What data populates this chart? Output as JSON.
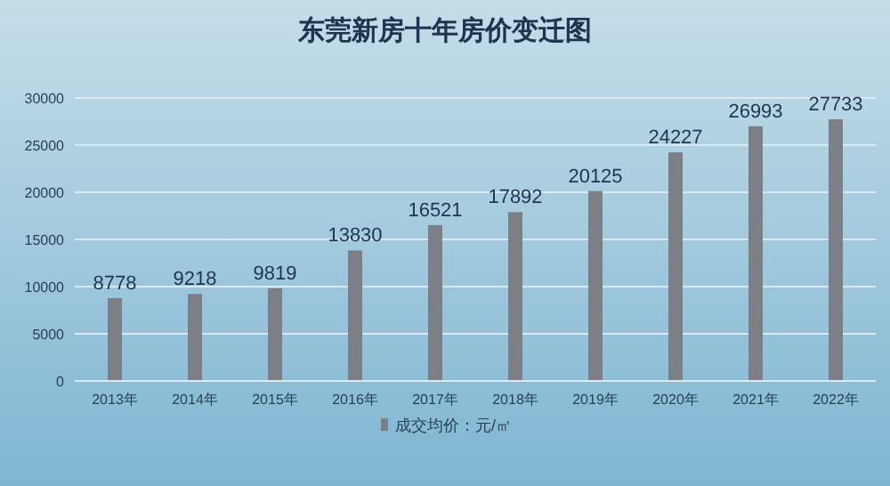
{
  "chart_data": {
    "type": "bar",
    "title": "东莞新房十年房价变迁图",
    "categories": [
      "2013年",
      "2014年",
      "2015年",
      "2016年",
      "2017年",
      "2018年",
      "2019年",
      "2020年",
      "2021年",
      "2022年"
    ],
    "series": [
      {
        "name": "成交均价：元/㎡",
        "color": "#7d7f86",
        "values": [
          8778,
          9218,
          9819,
          13830,
          16521,
          17892,
          20125,
          24227,
          26993,
          27733
        ]
      }
    ],
    "ylim": [
      0,
      30000
    ],
    "yticks": [
      0,
      5000,
      10000,
      15000,
      20000,
      25000,
      30000
    ],
    "grid": "y",
    "legend": "bottom",
    "data_labels": true
  }
}
